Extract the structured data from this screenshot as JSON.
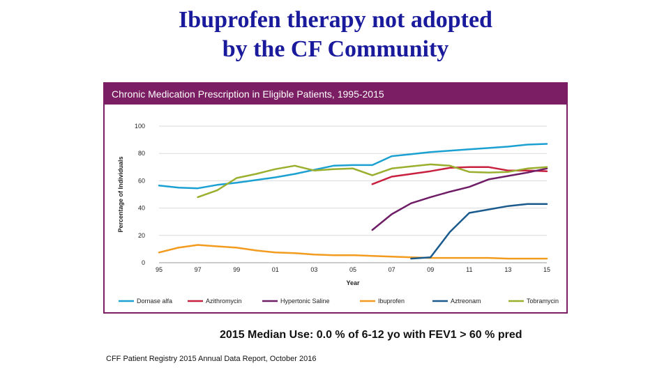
{
  "slide": {
    "title_line1": "Ibuprofen therapy not adopted",
    "title_line2": "by the CF Community",
    "median_note": "2015 Median Use: 0.0 % of 6-12 yo with FEV1 > 60 % pred",
    "source": "CFF Patient Registry 2015 Annual Data Report, October 2016"
  },
  "chart_data": {
    "type": "line",
    "title": "Chronic Medication Prescription in Eligible Patients, 1995-2015",
    "xlabel": "Year",
    "ylabel": "Percentage of Individuals",
    "x_tick_labels": [
      "95",
      "97",
      "99",
      "01",
      "03",
      "05",
      "07",
      "09",
      "11",
      "13",
      "15"
    ],
    "x_tick_values": [
      1995,
      1997,
      1999,
      2001,
      2003,
      2005,
      2007,
      2009,
      2011,
      2013,
      2015
    ],
    "y_ticks": [
      0,
      20,
      40,
      60,
      80,
      100
    ],
    "xlim": [
      1995,
      2015
    ],
    "ylim": [
      0,
      100
    ],
    "grid": "horizontal",
    "legend_position": "bottom",
    "series": [
      {
        "name": "Dornase alfa",
        "color": "#1ba0d2",
        "points": [
          [
            1995,
            56.5
          ],
          [
            1996,
            55
          ],
          [
            1997,
            54.5
          ],
          [
            1998,
            57
          ],
          [
            1999,
            58.5
          ],
          [
            2000,
            60.5
          ],
          [
            2001,
            62.5
          ],
          [
            2002,
            65
          ],
          [
            2003,
            68
          ],
          [
            2004,
            71
          ],
          [
            2005,
            71.5
          ],
          [
            2006,
            71.5
          ],
          [
            2007,
            78
          ],
          [
            2008,
            79.5
          ],
          [
            2009,
            81
          ],
          [
            2010,
            82
          ],
          [
            2011,
            83
          ],
          [
            2012,
            84
          ],
          [
            2013,
            85
          ],
          [
            2014,
            86.5
          ],
          [
            2015,
            87
          ]
        ]
      },
      {
        "name": "Azithromycin",
        "color": "#c8203f",
        "points": [
          [
            2006,
            57.5
          ],
          [
            2007,
            63
          ],
          [
            2008,
            65
          ],
          [
            2009,
            67
          ],
          [
            2010,
            69.5
          ],
          [
            2011,
            70
          ],
          [
            2012,
            70
          ],
          [
            2013,
            67.5
          ],
          [
            2014,
            67.5
          ],
          [
            2015,
            67
          ]
        ]
      },
      {
        "name": "Hypertonic Saline",
        "color": "#6e1d66",
        "points": [
          [
            2006,
            24
          ],
          [
            2007,
            35.5
          ],
          [
            2008,
            43.5
          ],
          [
            2009,
            48
          ],
          [
            2010,
            52
          ],
          [
            2011,
            55.5
          ],
          [
            2012,
            61
          ],
          [
            2013,
            63.5
          ],
          [
            2014,
            66
          ],
          [
            2015,
            69
          ]
        ]
      },
      {
        "name": "Ibuprofen",
        "color": "#f29b1e",
        "points": [
          [
            1995,
            7.5
          ],
          [
            1996,
            11
          ],
          [
            1997,
            13
          ],
          [
            1998,
            12
          ],
          [
            1999,
            11
          ],
          [
            2000,
            9
          ],
          [
            2001,
            7.5
          ],
          [
            2002,
            7
          ],
          [
            2003,
            6
          ],
          [
            2004,
            5.5
          ],
          [
            2005,
            5.5
          ],
          [
            2006,
            5
          ],
          [
            2007,
            4.5
          ],
          [
            2008,
            4
          ],
          [
            2009,
            3.5
          ],
          [
            2010,
            3.5
          ],
          [
            2011,
            3.5
          ],
          [
            2012,
            3.5
          ],
          [
            2013,
            3
          ],
          [
            2014,
            3
          ],
          [
            2015,
            3
          ]
        ]
      },
      {
        "name": "Aztreonam",
        "color": "#1a5a8c",
        "points": [
          [
            2008,
            3
          ],
          [
            2009,
            4
          ],
          [
            2010,
            22.5
          ],
          [
            2011,
            36.5
          ],
          [
            2012,
            39
          ],
          [
            2013,
            41.5
          ],
          [
            2014,
            43
          ],
          [
            2015,
            43
          ]
        ]
      },
      {
        "name": "Tobramycin",
        "color": "#9aaf2e",
        "points": [
          [
            1997,
            48
          ],
          [
            1998,
            53
          ],
          [
            1999,
            62
          ],
          [
            2000,
            65
          ],
          [
            2001,
            68.5
          ],
          [
            2002,
            71
          ],
          [
            2003,
            67.5
          ],
          [
            2004,
            68.5
          ],
          [
            2005,
            69
          ],
          [
            2006,
            64
          ],
          [
            2007,
            69
          ],
          [
            2008,
            70.5
          ],
          [
            2009,
            72
          ],
          [
            2010,
            71
          ],
          [
            2011,
            66.5
          ],
          [
            2012,
            66
          ],
          [
            2013,
            66.5
          ],
          [
            2014,
            69
          ],
          [
            2015,
            70
          ]
        ]
      }
    ]
  }
}
